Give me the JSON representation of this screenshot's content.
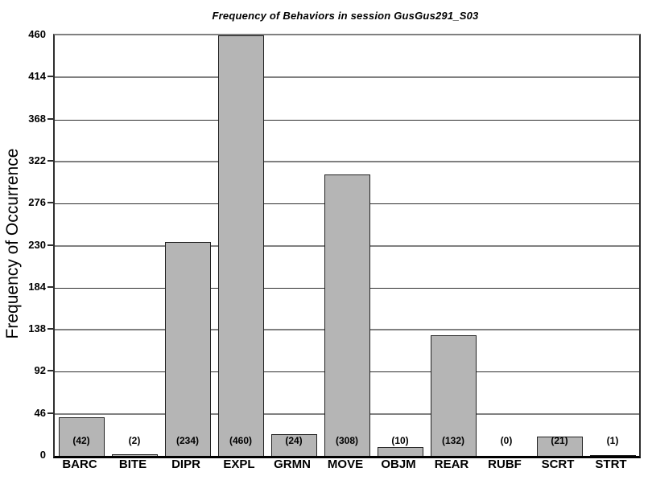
{
  "chart_data": {
    "type": "bar",
    "title": "Frequency of Behaviors in session GusGus291_S03",
    "ylabel": "Frequency of Occurrence",
    "xlabel": "",
    "categories": [
      "BARC",
      "BITE",
      "DIPR",
      "EXPL",
      "GRMN",
      "MOVE",
      "OBJM",
      "REAR",
      "RUBF",
      "SCRT",
      "STRT"
    ],
    "values": [
      42,
      2,
      234,
      460,
      24,
      308,
      10,
      132,
      0,
      21,
      1
    ],
    "value_labels": [
      "(42)",
      "(2)",
      "(234)",
      "(460)",
      "(24)",
      "(308)",
      "(10)",
      "(132)",
      "(0)",
      "(21)",
      "(1)"
    ],
    "yticks": [
      0,
      46,
      92,
      138,
      184,
      230,
      276,
      322,
      368,
      414,
      460
    ],
    "ylim": [
      0,
      460
    ],
    "grid": "horizontal, alternating major(gray thick)/minor(dark thin)",
    "legend": "none",
    "colors": {
      "bar_fill": "#b5b5b5",
      "bar_border": "#222222",
      "grid_major": "#808080",
      "grid_minor": "#2e2e2e",
      "axis_bottom": "#000000",
      "text": "#000000",
      "background": "#ffffff"
    }
  }
}
